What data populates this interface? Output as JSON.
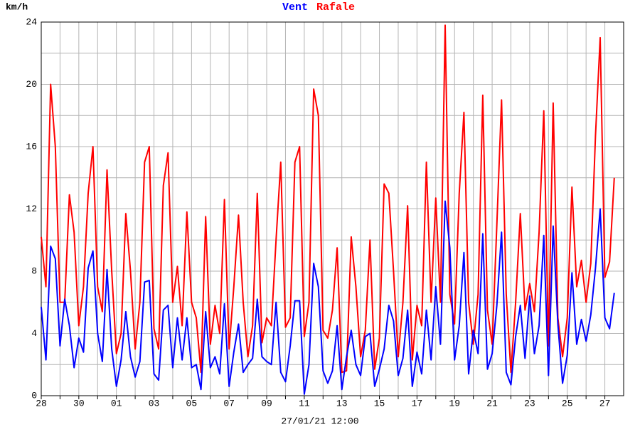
{
  "chart_data": {
    "type": "line",
    "y_label": "km/h",
    "x_label": "27/01/21 12:00",
    "xlim": [
      0,
      31
    ],
    "ylim": [
      0,
      24
    ],
    "yticks": [
      0,
      4,
      8,
      12,
      16,
      20,
      24
    ],
    "y_minor_ticks": [
      2,
      6,
      10,
      14,
      18,
      22
    ],
    "xticks": [
      {
        "value": 0,
        "label": "28"
      },
      {
        "value": 2,
        "label": "30"
      },
      {
        "value": 4,
        "label": "01"
      },
      {
        "value": 6,
        "label": "03"
      },
      {
        "value": 8,
        "label": "05"
      },
      {
        "value": 10,
        "label": "07"
      },
      {
        "value": 12,
        "label": "09"
      },
      {
        "value": 14,
        "label": "11"
      },
      {
        "value": 16,
        "label": "13"
      },
      {
        "value": 18,
        "label": "15"
      },
      {
        "value": 20,
        "label": "17"
      },
      {
        "value": 22,
        "label": "19"
      },
      {
        "value": 24,
        "label": "21"
      },
      {
        "value": 26,
        "label": "23"
      },
      {
        "value": 28,
        "label": "25"
      },
      {
        "value": 30,
        "label": "27"
      }
    ],
    "x_minor_ticks": [
      1,
      3,
      5,
      7,
      9,
      11,
      13,
      15,
      17,
      19,
      21,
      23,
      25,
      27,
      29
    ],
    "grid": true,
    "x": [
      0,
      0.25,
      0.5,
      0.75,
      1,
      1.25,
      1.5,
      1.75,
      2,
      2.25,
      2.5,
      2.75,
      3,
      3.25,
      3.5,
      3.75,
      4,
      4.25,
      4.5,
      4.75,
      5,
      5.25,
      5.5,
      5.75,
      6,
      6.25,
      6.5,
      6.75,
      7,
      7.25,
      7.5,
      7.75,
      8,
      8.25,
      8.5,
      8.75,
      9,
      9.25,
      9.5,
      9.75,
      10,
      10.25,
      10.5,
      10.75,
      11,
      11.25,
      11.5,
      11.75,
      12,
      12.25,
      12.5,
      12.75,
      13,
      13.25,
      13.5,
      13.75,
      14,
      14.25,
      14.5,
      14.75,
      15,
      15.25,
      15.5,
      15.75,
      16,
      16.25,
      16.5,
      16.75,
      17,
      17.25,
      17.5,
      17.75,
      18,
      18.25,
      18.5,
      18.75,
      19,
      19.25,
      19.5,
      19.75,
      20,
      20.25,
      20.5,
      20.75,
      21,
      21.25,
      21.5,
      21.75,
      22,
      22.25,
      22.5,
      22.75,
      23,
      23.25,
      23.5,
      23.75,
      24,
      24.25,
      24.5,
      24.75,
      25,
      25.25,
      25.5,
      25.75,
      26,
      26.25,
      26.5,
      26.75,
      27,
      27.25,
      27.5,
      27.75,
      28,
      28.25,
      28.5,
      28.75,
      29,
      29.25,
      29.5,
      29.75,
      30,
      30.25,
      30.5
    ],
    "series": [
      {
        "name": "Vent",
        "color": "#0000ff",
        "values": [
          5.7,
          2.3,
          9.6,
          8.8,
          3.2,
          6.2,
          4.5,
          1.8,
          3.7,
          2.8,
          8.2,
          9.3,
          4,
          2.2,
          8.1,
          3,
          0.6,
          2.3,
          5.4,
          2.5,
          1.2,
          2.2,
          7.3,
          7.4,
          1.4,
          1,
          5.5,
          5.8,
          1.8,
          5,
          2.3,
          5,
          1.8,
          2,
          0.4,
          5.4,
          1.8,
          2.5,
          1.4,
          5.9,
          0.6,
          2.8,
          4.6,
          1.5,
          2,
          2.4,
          6.2,
          2.5,
          2.2,
          2,
          6,
          1.5,
          0.9,
          3.2,
          6.1,
          6.1,
          0.1,
          2,
          8.5,
          7,
          1.6,
          0.8,
          1.6,
          4.5,
          0.4,
          2.5,
          4.2,
          2,
          1.3,
          3.8,
          4,
          0.6,
          1.7,
          3,
          5.8,
          4.8,
          1.3,
          2.4,
          5.5,
          0.6,
          2.8,
          1.4,
          5.5,
          2.3,
          7,
          3.3,
          12.5,
          9.5,
          2.3,
          4.5,
          9.2,
          1.4,
          4.2,
          2.7,
          10.4,
          1.7,
          2.7,
          5.8,
          10.5,
          1.5,
          0.7,
          3.8,
          5.8,
          2.4,
          6.4,
          2.7,
          4.5,
          10.3,
          1.3,
          10.9,
          4.6,
          0.8,
          2.6,
          7.9,
          3.3,
          4.9,
          3.5,
          5.2,
          8.2,
          12,
          5,
          4.3,
          6.6
        ]
      },
      {
        "name": "Rafale",
        "color": "#ff0000",
        "values": [
          10.2,
          7,
          20,
          16,
          6,
          6,
          12.9,
          10.5,
          4.5,
          7,
          13,
          16,
          7,
          5.4,
          14.5,
          8,
          2.7,
          4,
          11.7,
          8,
          3,
          6,
          15,
          16,
          4.3,
          3,
          13.5,
          15.6,
          6,
          8.3,
          4.5,
          11.8,
          6,
          5,
          1.5,
          11.5,
          3.3,
          5.8,
          4,
          12.6,
          3,
          7,
          11.6,
          6,
          2.5,
          4.5,
          13,
          3.4,
          5,
          4.5,
          10,
          15,
          4.4,
          5,
          15,
          16,
          3.8,
          6,
          19.7,
          18,
          4.2,
          3.7,
          5.5,
          9.5,
          1.5,
          1.6,
          10.2,
          7,
          2.5,
          4.2,
          10,
          1.7,
          3.7,
          13.6,
          13,
          8,
          2.5,
          6,
          12.2,
          2.3,
          5.8,
          4.5,
          15,
          6,
          12.7,
          6,
          23.8,
          6.5,
          4.6,
          13,
          18.2,
          6,
          3.3,
          6.5,
          19.3,
          5.5,
          3.3,
          11,
          19,
          6.5,
          1.5,
          6,
          11.7,
          5.5,
          7.2,
          5.4,
          10.5,
          18.3,
          3.2,
          18.8,
          5,
          2.5,
          5,
          13.4,
          7,
          8.7,
          6,
          8.5,
          16.7,
          23,
          7.6,
          8.6,
          14
        ]
      }
    ]
  }
}
